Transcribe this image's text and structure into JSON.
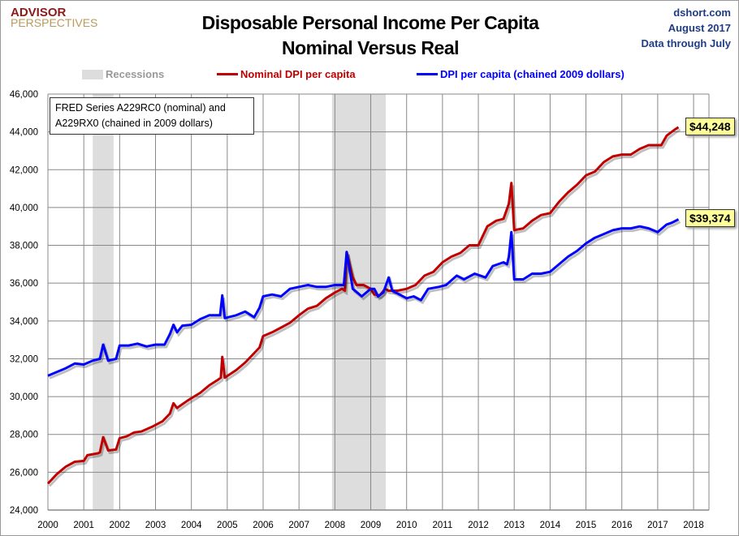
{
  "header": {
    "logo_line1": "ADVISOR",
    "logo_line2": "PERSPECTIVES",
    "title_line1": "Disposable Personal Income Per Capita",
    "title_line2": "Nominal Versus Real",
    "source": "dshort.com",
    "date": "August 2017",
    "data_through": "Data through July"
  },
  "legend": {
    "recessions": "Recessions",
    "nominal": "Nominal DPI per capita",
    "real": "DPI per capita (chained 2009 dollars)"
  },
  "note": "FRED Series A229RC0 (nominal) and A229RX0 (chained in 2009 dollars)",
  "chart_data": {
    "type": "line",
    "xlim": [
      2000,
      2018.4
    ],
    "ylim": [
      24000,
      46000
    ],
    "x_ticks": [
      "2000",
      "2001",
      "2002",
      "2003",
      "2004",
      "2005",
      "2006",
      "2007",
      "2008",
      "2009",
      "2010",
      "2011",
      "2012",
      "2013",
      "2014",
      "2015",
      "2016",
      "2017",
      "2018"
    ],
    "y_ticks": [
      "24,000",
      "26,000",
      "28,000",
      "30,000",
      "32,000",
      "34,000",
      "36,000",
      "38,000",
      "40,000",
      "42,000",
      "44,000",
      "46,000"
    ],
    "grid": true,
    "legend_position": "top",
    "colors": {
      "nominal": "#c00000",
      "real": "#0000ff",
      "recession": "#dddddd"
    },
    "recessions": [
      [
        2001.25,
        2001.83
      ],
      [
        2007.92,
        2009.42
      ]
    ],
    "series": [
      {
        "name": "Nominal DPI per capita",
        "last_label": "$44,248",
        "points": [
          [
            2000,
            25400
          ],
          [
            2000.25,
            25900
          ],
          [
            2000.5,
            26300
          ],
          [
            2000.75,
            26550
          ],
          [
            2001,
            26600
          ],
          [
            2001.1,
            26900
          ],
          [
            2001.4,
            27000
          ],
          [
            2001.45,
            27050
          ],
          [
            2001.54,
            27850
          ],
          [
            2001.68,
            27150
          ],
          [
            2001.9,
            27200
          ],
          [
            2002,
            27800
          ],
          [
            2002.2,
            27900
          ],
          [
            2002.4,
            28100
          ],
          [
            2002.6,
            28150
          ],
          [
            2002.9,
            28400
          ],
          [
            2003.2,
            28700
          ],
          [
            2003.4,
            29100
          ],
          [
            2003.5,
            29650
          ],
          [
            2003.6,
            29400
          ],
          [
            2003.9,
            29800
          ],
          [
            2004.25,
            30200
          ],
          [
            2004.5,
            30600
          ],
          [
            2004.75,
            30900
          ],
          [
            2004.82,
            31000
          ],
          [
            2004.86,
            32100
          ],
          [
            2004.93,
            31000
          ],
          [
            2005.25,
            31400
          ],
          [
            2005.5,
            31800
          ],
          [
            2005.75,
            32300
          ],
          [
            2005.9,
            32600
          ],
          [
            2006,
            33200
          ],
          [
            2006.25,
            33400
          ],
          [
            2006.5,
            33650
          ],
          [
            2006.75,
            33900
          ],
          [
            2007,
            34300
          ],
          [
            2007.25,
            34650
          ],
          [
            2007.5,
            34800
          ],
          [
            2007.75,
            35200
          ],
          [
            2008,
            35500
          ],
          [
            2008.2,
            35700
          ],
          [
            2008.28,
            35600
          ],
          [
            2008.33,
            37650
          ],
          [
            2008.5,
            36300
          ],
          [
            2008.6,
            35900
          ],
          [
            2008.8,
            35900
          ],
          [
            2009,
            35700
          ],
          [
            2009.1,
            35400
          ],
          [
            2009.25,
            35350
          ],
          [
            2009.4,
            35700
          ],
          [
            2009.5,
            35600
          ],
          [
            2009.75,
            35600
          ],
          [
            2010,
            35700
          ],
          [
            2010.25,
            35900
          ],
          [
            2010.5,
            36400
          ],
          [
            2010.75,
            36600
          ],
          [
            2011,
            37100
          ],
          [
            2011.25,
            37400
          ],
          [
            2011.5,
            37600
          ],
          [
            2011.75,
            38000
          ],
          [
            2012,
            38000
          ],
          [
            2012.25,
            39000
          ],
          [
            2012.5,
            39300
          ],
          [
            2012.7,
            39400
          ],
          [
            2012.85,
            40200
          ],
          [
            2012.92,
            41300
          ],
          [
            2013,
            38800
          ],
          [
            2013.25,
            38900
          ],
          [
            2013.5,
            39300
          ],
          [
            2013.75,
            39600
          ],
          [
            2014,
            39700
          ],
          [
            2014.25,
            40300
          ],
          [
            2014.5,
            40800
          ],
          [
            2014.75,
            41200
          ],
          [
            2015,
            41700
          ],
          [
            2015.25,
            41900
          ],
          [
            2015.5,
            42400
          ],
          [
            2015.75,
            42700
          ],
          [
            2016,
            42800
          ],
          [
            2016.25,
            42800
          ],
          [
            2016.5,
            43100
          ],
          [
            2016.75,
            43300
          ],
          [
            2017,
            43300
          ],
          [
            2017.1,
            43300
          ],
          [
            2017.25,
            43800
          ],
          [
            2017.5,
            44150
          ],
          [
            2017.58,
            44248
          ]
        ]
      },
      {
        "name": "DPI per capita (chained 2009 dollars)",
        "last_label": "$39,374",
        "points": [
          [
            2000,
            31100
          ],
          [
            2000.25,
            31300
          ],
          [
            2000.5,
            31500
          ],
          [
            2000.75,
            31750
          ],
          [
            2001,
            31700
          ],
          [
            2001.25,
            31900
          ],
          [
            2001.45,
            32000
          ],
          [
            2001.54,
            32750
          ],
          [
            2001.68,
            31900
          ],
          [
            2001.9,
            32000
          ],
          [
            2002,
            32700
          ],
          [
            2002.25,
            32700
          ],
          [
            2002.5,
            32800
          ],
          [
            2002.75,
            32650
          ],
          [
            2003,
            32750
          ],
          [
            2003.25,
            32750
          ],
          [
            2003.4,
            33300
          ],
          [
            2003.5,
            33800
          ],
          [
            2003.6,
            33400
          ],
          [
            2003.75,
            33750
          ],
          [
            2004,
            33800
          ],
          [
            2004.25,
            34100
          ],
          [
            2004.5,
            34300
          ],
          [
            2004.8,
            34300
          ],
          [
            2004.86,
            35350
          ],
          [
            2004.93,
            34150
          ],
          [
            2005.25,
            34300
          ],
          [
            2005.5,
            34500
          ],
          [
            2005.75,
            34200
          ],
          [
            2005.9,
            34700
          ],
          [
            2006,
            35300
          ],
          [
            2006.25,
            35400
          ],
          [
            2006.5,
            35300
          ],
          [
            2006.75,
            35700
          ],
          [
            2007,
            35800
          ],
          [
            2007.25,
            35900
          ],
          [
            2007.5,
            35800
          ],
          [
            2007.75,
            35800
          ],
          [
            2008,
            35900
          ],
          [
            2008.25,
            35900
          ],
          [
            2008.33,
            37650
          ],
          [
            2008.5,
            35700
          ],
          [
            2008.75,
            35300
          ],
          [
            2009,
            35700
          ],
          [
            2009.1,
            35700
          ],
          [
            2009.2,
            35300
          ],
          [
            2009.35,
            35500
          ],
          [
            2009.5,
            36300
          ],
          [
            2009.6,
            35600
          ],
          [
            2009.8,
            35400
          ],
          [
            2010,
            35200
          ],
          [
            2010.2,
            35300
          ],
          [
            2010.4,
            35100
          ],
          [
            2010.6,
            35700
          ],
          [
            2010.9,
            35800
          ],
          [
            2011.1,
            35900
          ],
          [
            2011.4,
            36400
          ],
          [
            2011.6,
            36200
          ],
          [
            2011.9,
            36500
          ],
          [
            2012.2,
            36300
          ],
          [
            2012.4,
            36900
          ],
          [
            2012.7,
            37100
          ],
          [
            2012.8,
            37000
          ],
          [
            2012.85,
            37400
          ],
          [
            2012.92,
            38700
          ],
          [
            2013,
            36200
          ],
          [
            2013.25,
            36200
          ],
          [
            2013.5,
            36500
          ],
          [
            2013.75,
            36500
          ],
          [
            2014,
            36600
          ],
          [
            2014.25,
            37000
          ],
          [
            2014.5,
            37400
          ],
          [
            2014.75,
            37700
          ],
          [
            2015,
            38100
          ],
          [
            2015.25,
            38400
          ],
          [
            2015.5,
            38600
          ],
          [
            2015.75,
            38800
          ],
          [
            2016,
            38900
          ],
          [
            2016.25,
            38900
          ],
          [
            2016.5,
            39000
          ],
          [
            2016.75,
            38900
          ],
          [
            2017,
            38700
          ],
          [
            2017.25,
            39100
          ],
          [
            2017.4,
            39200
          ],
          [
            2017.58,
            39374
          ]
        ]
      }
    ]
  }
}
